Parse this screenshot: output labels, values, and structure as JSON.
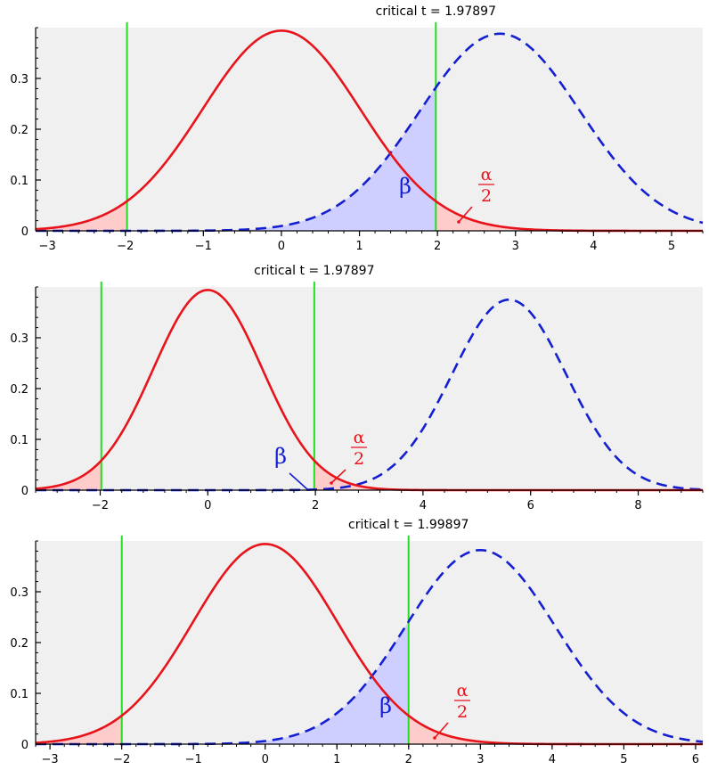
{
  "chart_data": [
    {
      "type": "line",
      "title": "critical t = 1.97897",
      "xlim": [
        -3.15,
        5.4
      ],
      "ylim": [
        0,
        0.4
      ],
      "x_ticks": [
        -3,
        -2,
        -1,
        0,
        1,
        2,
        3,
        4,
        5
      ],
      "x_tick_labels": [
        "−3",
        "−2",
        "−1",
        "0",
        "1",
        "2",
        "3",
        "4",
        "5"
      ],
      "y_ticks": [
        0,
        0.1,
        0.2,
        0.3
      ],
      "y_tick_labels": [
        "0",
        "0.1",
        "0.2",
        "0.3"
      ],
      "critical_t": 1.97897,
      "critical_lines": [
        -1.97897,
        1.97897
      ],
      "series": [
        {
          "style": "solid",
          "color": "#e8141c",
          "center": 0,
          "peak": 0.394
        },
        {
          "style": "dashed",
          "color": "#1420d0",
          "center": 2.8,
          "peak": 0.388
        }
      ],
      "annotations": {
        "beta": "β",
        "alpha": "α",
        "alpha_denominator": "2"
      }
    },
    {
      "type": "line",
      "title": "critical t = 1.97897",
      "xlim": [
        -3.2,
        9.2
      ],
      "ylim": [
        0,
        0.4
      ],
      "x_ticks": [
        -2,
        0,
        2,
        4,
        6,
        8
      ],
      "x_tick_labels": [
        "−2",
        "0",
        "2",
        "4",
        "6",
        "8"
      ],
      "y_ticks": [
        0,
        0.1,
        0.2,
        0.3
      ],
      "y_tick_labels": [
        "0",
        "0.1",
        "0.2",
        "0.3"
      ],
      "critical_t": 1.97897,
      "critical_lines": [
        -1.97897,
        1.97897
      ],
      "series": [
        {
          "style": "solid",
          "color": "#e8141c",
          "center": 0,
          "peak": 0.394
        },
        {
          "style": "dashed",
          "color": "#1420d0",
          "center": 5.6,
          "peak": 0.375
        }
      ],
      "annotations": {
        "beta": "β",
        "alpha": "α",
        "alpha_denominator": "2"
      }
    },
    {
      "type": "line",
      "title": "critical t = 1.99897",
      "xlim": [
        -3.2,
        6.1
      ],
      "ylim": [
        0,
        0.4
      ],
      "x_ticks": [
        -3,
        -2,
        -1,
        0,
        1,
        2,
        3,
        4,
        5,
        6
      ],
      "x_tick_labels": [
        "−3",
        "−2",
        "−1",
        "0",
        "1",
        "2",
        "3",
        "4",
        "5",
        "6"
      ],
      "y_ticks": [
        0,
        0.1,
        0.2,
        0.3
      ],
      "y_tick_labels": [
        "0",
        "0.1",
        "0.2",
        "0.3"
      ],
      "critical_t": 1.99897,
      "critical_lines": [
        -1.99897,
        1.99897
      ],
      "series": [
        {
          "style": "solid",
          "color": "#e8141c",
          "center": 0,
          "peak": 0.394
        },
        {
          "style": "dashed",
          "color": "#1420d0",
          "center": 3.0,
          "peak": 0.382
        }
      ],
      "annotations": {
        "beta": "β",
        "alpha": "α",
        "alpha_denominator": "2"
      }
    }
  ],
  "colors": {
    "plot_background": "#f0f0f0",
    "null_curve": "#e8141c",
    "alt_curve": "#1420d0",
    "critical_line": "#22dd22",
    "alpha_fill": "#ffcccc",
    "beta_fill": "#ccccff"
  }
}
